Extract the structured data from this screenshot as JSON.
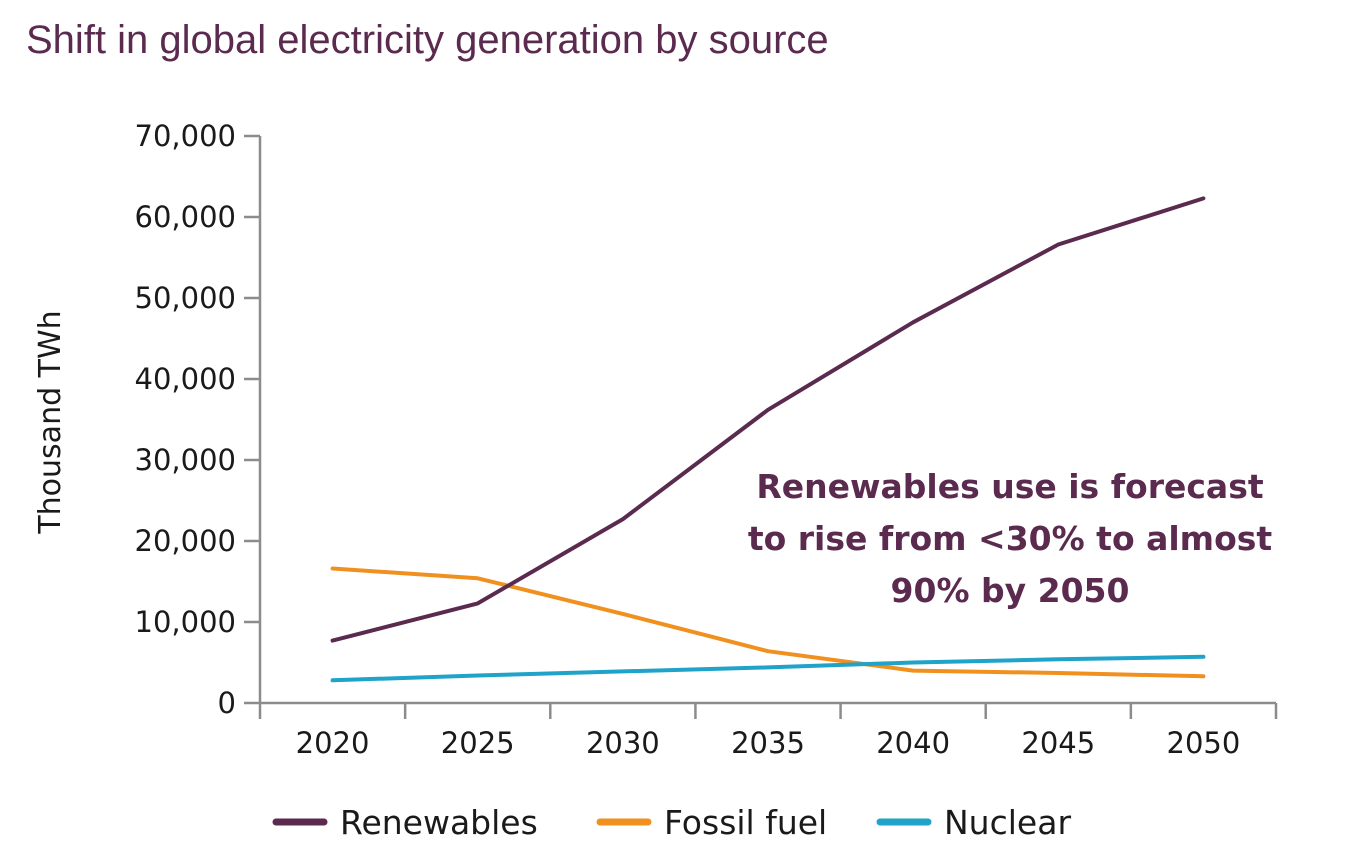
{
  "chart_data": {
    "type": "line",
    "title": "Shift in global electricity generation by source",
    "ylabel": "Thousand TWh",
    "xlabel": "",
    "x": [
      2020,
      2025,
      2030,
      2035,
      2040,
      2045,
      2050
    ],
    "x_tick_labels": [
      "2020",
      "2025",
      "2030",
      "2035",
      "2040",
      "2045",
      "2050"
    ],
    "ylim": [
      0,
      70000
    ],
    "y_ticks": [
      0,
      10000,
      20000,
      30000,
      40000,
      50000,
      60000,
      70000
    ],
    "y_tick_labels": [
      "0",
      "10,000",
      "20,000",
      "30,000",
      "40,000",
      "50,000",
      "60,000",
      "70,000"
    ],
    "grid": false,
    "legend_position": "bottom",
    "series": [
      {
        "name": "Renewables",
        "color": "#5b2a4f",
        "values": [
          7700,
          12300,
          22700,
          36200,
          47000,
          56600,
          62300
        ]
      },
      {
        "name": "Fossil fuel",
        "color": "#f0901e",
        "values": [
          16600,
          15400,
          11000,
          6400,
          4000,
          3700,
          3300
        ]
      },
      {
        "name": "Nuclear",
        "color": "#1fa3c8",
        "values": [
          2800,
          3400,
          3900,
          4400,
          5000,
          5400,
          5700
        ]
      }
    ],
    "annotation": {
      "lines": [
        "Renewables use is forecast",
        "to rise from <30% to almost",
        "90% by 2050"
      ]
    }
  }
}
